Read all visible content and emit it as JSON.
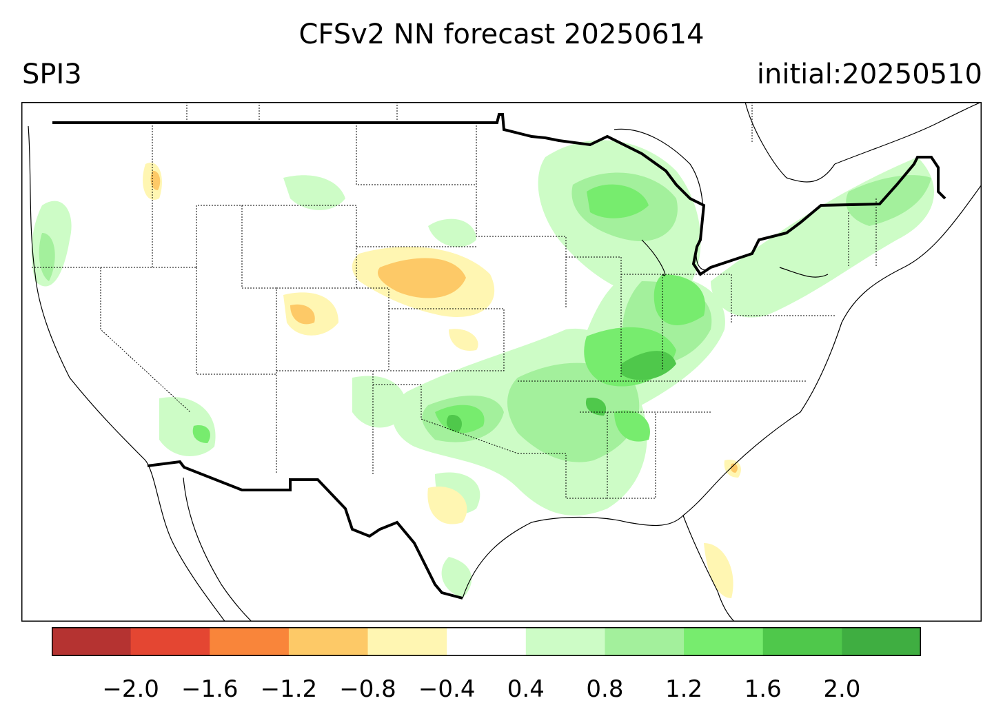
{
  "header": {
    "title": "CFSv2 NN forecast 20250614",
    "variable": "SPI3",
    "initial": "initial:20250510"
  },
  "legend": {
    "bins": [
      {
        "color": "#b53331"
      },
      {
        "color": "#e44632"
      },
      {
        "color": "#f9853a"
      },
      {
        "color": "#fdc967"
      },
      {
        "color": "#fff6b2"
      },
      {
        "color": "#ffffff"
      },
      {
        "color": "#cdfcc6"
      },
      {
        "color": "#a3f09c"
      },
      {
        "color": "#77ec6e"
      },
      {
        "color": "#4fc84b"
      },
      {
        "color": "#3fae41"
      }
    ],
    "tick_labels": [
      "−2.0",
      "−1.6",
      "−1.2",
      "−0.8",
      "−0.4",
      "0.4",
      "0.8",
      "1.2",
      "1.6",
      "2.0"
    ],
    "tick_values": [
      -2.0,
      -1.6,
      -1.2,
      -0.8,
      -0.4,
      0.4,
      0.8,
      1.2,
      1.6,
      2.0
    ]
  }
}
